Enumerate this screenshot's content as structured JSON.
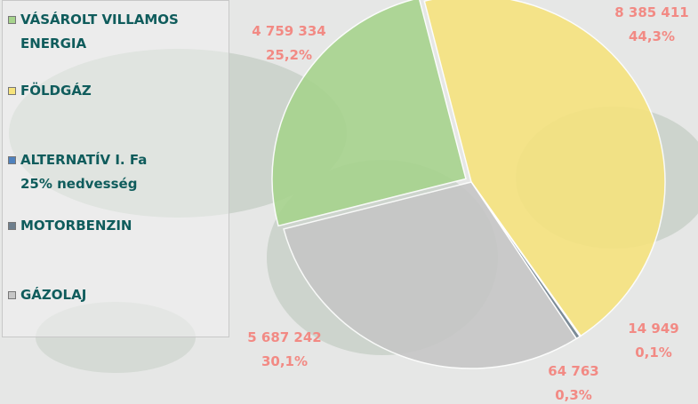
{
  "chart_data": {
    "type": "pie",
    "categories": [
      "VÁSÁROLT VILLAMOS\nENERGIA",
      "FÖLDGÁZ",
      "ALTERNATÍV I. Fa\n25% nedvesség",
      "MOTORBENZIN",
      "GÁZOLAJ"
    ],
    "values": [
      4759334,
      8385411,
      14949,
      64763,
      5687242
    ],
    "value_labels": [
      "4 759 334",
      "8 385 411",
      "14 949",
      "64 763",
      "5 687 242"
    ],
    "percents": [
      25.2,
      44.3,
      0.1,
      0.3,
      30.1
    ],
    "percent_labels": [
      "25,2%",
      "44,3%",
      "0,1%",
      "0,3%",
      "30,1%"
    ],
    "colors": [
      "#a6d38c",
      "#f6e37c",
      "#4f81bd",
      "#6e7f8d",
      "#c6c6c6"
    ],
    "legend": "left"
  }
}
